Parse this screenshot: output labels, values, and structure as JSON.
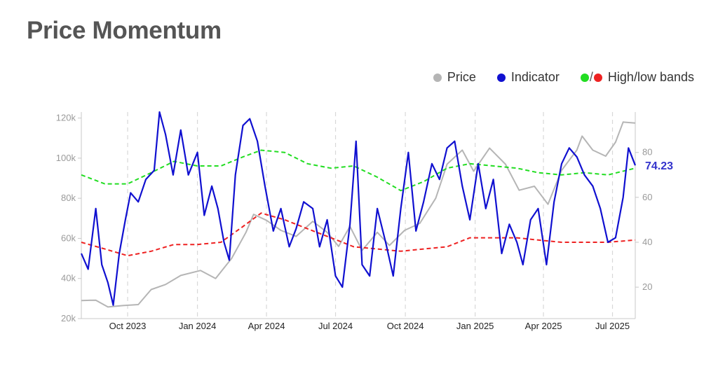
{
  "title": "Price Momentum",
  "legend": {
    "price": "Price",
    "indicator": "Indicator",
    "bands_label": "High/low bands",
    "slash": "/"
  },
  "colors": {
    "price": "#b5b5b5",
    "indicator": "#1010d0",
    "high_band": "#22dd22",
    "low_band": "#ee2222",
    "grid": "#d8d8d8",
    "axis": "#c8c8c8"
  },
  "chart_data": {
    "type": "line",
    "title": "Price Momentum",
    "x_start": "2023-08-01",
    "x_end": "2025-07-31",
    "x_ticks": [
      "Oct 2023",
      "Jan 2024",
      "Apr 2024",
      "Jul 2024",
      "Oct 2024",
      "Jan 2025",
      "Apr 2025",
      "Jul 2025"
    ],
    "x_tick_dates": [
      "2023-10-01",
      "2024-01-01",
      "2024-04-01",
      "2024-07-01",
      "2024-10-01",
      "2025-01-01",
      "2025-04-01",
      "2025-07-01"
    ],
    "y_left": {
      "ticks": [
        "20k",
        "40k",
        "60k",
        "80k",
        "100k",
        "120k"
      ],
      "values": [
        20000,
        40000,
        60000,
        80000,
        100000,
        120000
      ],
      "lim": [
        20000,
        123000
      ]
    },
    "y_right": {
      "ticks": [
        "20",
        "40",
        "60",
        "80"
      ],
      "values": [
        20,
        40,
        60,
        80
      ],
      "lim": [
        6,
        98
      ]
    },
    "last_value_label": "74.23",
    "grid": "vertical dashed at x ticks",
    "legend_position": "top-right",
    "series": [
      {
        "name": "Price",
        "axis": "left",
        "points": [
          [
            "2023-08-01",
            29000
          ],
          [
            "2023-08-20",
            29200
          ],
          [
            "2023-09-05",
            25800
          ],
          [
            "2023-09-25",
            26500
          ],
          [
            "2023-10-15",
            27000
          ],
          [
            "2023-11-01",
            34500
          ],
          [
            "2023-11-20",
            37000
          ],
          [
            "2023-12-10",
            41500
          ],
          [
            "2024-01-05",
            44000
          ],
          [
            "2024-01-25",
            40000
          ],
          [
            "2024-02-15",
            50000
          ],
          [
            "2024-03-05",
            63000
          ],
          [
            "2024-03-15",
            72000
          ],
          [
            "2024-04-01",
            69000
          ],
          [
            "2024-04-20",
            64000
          ],
          [
            "2024-05-10",
            61000
          ],
          [
            "2024-06-01",
            68500
          ],
          [
            "2024-06-20",
            63000
          ],
          [
            "2024-07-05",
            56000
          ],
          [
            "2024-07-20",
            66000
          ],
          [
            "2024-08-05",
            54000
          ],
          [
            "2024-08-25",
            63000
          ],
          [
            "2024-09-10",
            56500
          ],
          [
            "2024-09-30",
            64000
          ],
          [
            "2024-10-20",
            67500
          ],
          [
            "2024-11-10",
            80000
          ],
          [
            "2024-11-25",
            97000
          ],
          [
            "2024-12-15",
            104000
          ],
          [
            "2024-12-30",
            93500
          ],
          [
            "2025-01-20",
            105000
          ],
          [
            "2025-02-10",
            97000
          ],
          [
            "2025-02-28",
            84000
          ],
          [
            "2025-03-20",
            86000
          ],
          [
            "2025-04-07",
            77000
          ],
          [
            "2025-04-25",
            94000
          ],
          [
            "2025-05-15",
            104000
          ],
          [
            "2025-05-22",
            111000
          ],
          [
            "2025-06-05",
            104000
          ],
          [
            "2025-06-22",
            101000
          ],
          [
            "2025-07-05",
            108000
          ],
          [
            "2025-07-15",
            118000
          ],
          [
            "2025-07-31",
            117500
          ]
        ]
      },
      {
        "name": "Indicator",
        "axis": "right",
        "points": [
          [
            "2023-08-01",
            35
          ],
          [
            "2023-08-10",
            28
          ],
          [
            "2023-08-20",
            55
          ],
          [
            "2023-08-28",
            30
          ],
          [
            "2023-09-05",
            22
          ],
          [
            "2023-09-12",
            12
          ],
          [
            "2023-09-20",
            35
          ],
          [
            "2023-09-28",
            50
          ],
          [
            "2023-10-05",
            62
          ],
          [
            "2023-10-15",
            58
          ],
          [
            "2023-10-25",
            68
          ],
          [
            "2023-11-05",
            72
          ],
          [
            "2023-11-12",
            98
          ],
          [
            "2023-11-20",
            88
          ],
          [
            "2023-11-30",
            70
          ],
          [
            "2023-12-10",
            90
          ],
          [
            "2023-12-20",
            70
          ],
          [
            "2024-01-01",
            80
          ],
          [
            "2024-01-10",
            52
          ],
          [
            "2024-01-20",
            65
          ],
          [
            "2024-01-28",
            55
          ],
          [
            "2024-02-05",
            40
          ],
          [
            "2024-02-12",
            32
          ],
          [
            "2024-02-20",
            70
          ],
          [
            "2024-03-01",
            92
          ],
          [
            "2024-03-10",
            95
          ],
          [
            "2024-03-20",
            85
          ],
          [
            "2024-03-30",
            65
          ],
          [
            "2024-04-10",
            45
          ],
          [
            "2024-04-20",
            55
          ],
          [
            "2024-05-01",
            38
          ],
          [
            "2024-05-10",
            46
          ],
          [
            "2024-05-20",
            58
          ],
          [
            "2024-06-01",
            55
          ],
          [
            "2024-06-10",
            38
          ],
          [
            "2024-06-20",
            50
          ],
          [
            "2024-07-01",
            25
          ],
          [
            "2024-07-10",
            20
          ],
          [
            "2024-07-20",
            48
          ],
          [
            "2024-07-28",
            85
          ],
          [
            "2024-08-05",
            30
          ],
          [
            "2024-08-15",
            25
          ],
          [
            "2024-08-25",
            55
          ],
          [
            "2024-09-05",
            40
          ],
          [
            "2024-09-15",
            25
          ],
          [
            "2024-09-25",
            55
          ],
          [
            "2024-10-05",
            80
          ],
          [
            "2024-10-15",
            45
          ],
          [
            "2024-10-25",
            58
          ],
          [
            "2024-11-05",
            75
          ],
          [
            "2024-11-15",
            68
          ],
          [
            "2024-11-25",
            82
          ],
          [
            "2024-12-05",
            85
          ],
          [
            "2024-12-15",
            65
          ],
          [
            "2024-12-25",
            50
          ],
          [
            "2025-01-05",
            75
          ],
          [
            "2025-01-15",
            55
          ],
          [
            "2025-01-25",
            68
          ],
          [
            "2025-02-05",
            35
          ],
          [
            "2025-02-15",
            48
          ],
          [
            "2025-02-25",
            40
          ],
          [
            "2025-03-05",
            30
          ],
          [
            "2025-03-15",
            50
          ],
          [
            "2025-03-25",
            55
          ],
          [
            "2025-04-05",
            30
          ],
          [
            "2025-04-15",
            58
          ],
          [
            "2025-04-25",
            75
          ],
          [
            "2025-05-05",
            82
          ],
          [
            "2025-05-15",
            78
          ],
          [
            "2025-05-25",
            70
          ],
          [
            "2025-06-05",
            65
          ],
          [
            "2025-06-15",
            55
          ],
          [
            "2025-06-25",
            40
          ],
          [
            "2025-07-05",
            42
          ],
          [
            "2025-07-15",
            60
          ],
          [
            "2025-07-22",
            82
          ],
          [
            "2025-07-31",
            74.23
          ]
        ]
      },
      {
        "name": "High band",
        "axis": "right",
        "points": [
          [
            "2023-08-01",
            70
          ],
          [
            "2023-09-01",
            66
          ],
          [
            "2023-10-01",
            66
          ],
          [
            "2023-11-01",
            71
          ],
          [
            "2023-12-01",
            76
          ],
          [
            "2024-01-01",
            74
          ],
          [
            "2024-02-01",
            74
          ],
          [
            "2024-03-01",
            78
          ],
          [
            "2024-03-25",
            81
          ],
          [
            "2024-04-25",
            80
          ],
          [
            "2024-05-25",
            75
          ],
          [
            "2024-06-25",
            73
          ],
          [
            "2024-07-25",
            74
          ],
          [
            "2024-08-25",
            69
          ],
          [
            "2024-09-25",
            63
          ],
          [
            "2024-10-25",
            67
          ],
          [
            "2024-11-25",
            73
          ],
          [
            "2024-12-25",
            75
          ],
          [
            "2025-01-25",
            74
          ],
          [
            "2025-02-25",
            73
          ],
          [
            "2025-03-25",
            71
          ],
          [
            "2025-04-25",
            70
          ],
          [
            "2025-05-25",
            71
          ],
          [
            "2025-06-25",
            70
          ],
          [
            "2025-07-31",
            73
          ]
        ]
      },
      {
        "name": "Low band",
        "axis": "right",
        "points": [
          [
            "2023-08-01",
            40
          ],
          [
            "2023-09-01",
            37
          ],
          [
            "2023-10-01",
            34
          ],
          [
            "2023-11-01",
            36
          ],
          [
            "2023-12-01",
            39
          ],
          [
            "2024-01-01",
            39
          ],
          [
            "2024-02-01",
            40
          ],
          [
            "2024-03-01",
            47
          ],
          [
            "2024-03-25",
            53
          ],
          [
            "2024-04-25",
            50
          ],
          [
            "2024-05-25",
            46
          ],
          [
            "2024-06-25",
            42
          ],
          [
            "2024-07-25",
            38
          ],
          [
            "2024-08-25",
            37
          ],
          [
            "2024-09-25",
            36
          ],
          [
            "2024-10-25",
            37
          ],
          [
            "2024-11-25",
            38
          ],
          [
            "2024-12-25",
            42
          ],
          [
            "2025-01-25",
            42
          ],
          [
            "2025-02-25",
            42
          ],
          [
            "2025-03-25",
            41
          ],
          [
            "2025-04-25",
            40
          ],
          [
            "2025-05-25",
            40
          ],
          [
            "2025-06-25",
            40
          ],
          [
            "2025-07-31",
            41
          ]
        ]
      }
    ]
  }
}
